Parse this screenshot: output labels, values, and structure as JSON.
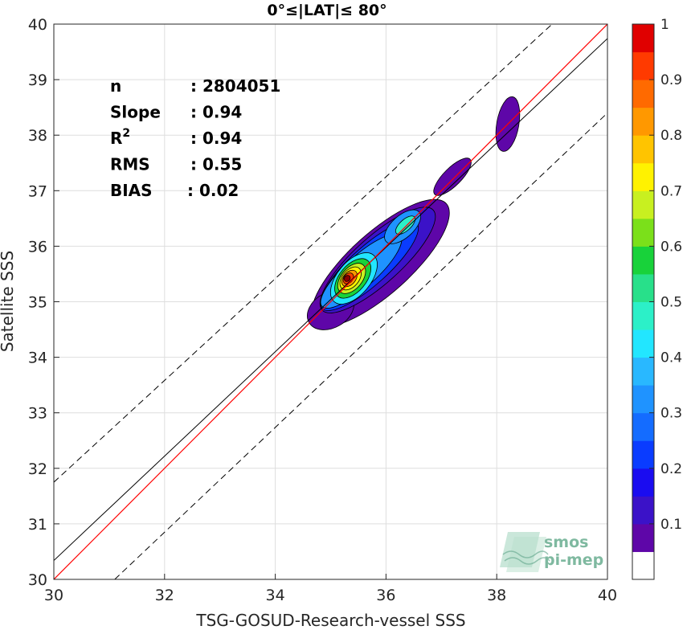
{
  "chart_data": {
    "type": "heatmap",
    "title": "0°≤|LAT|≤ 80°",
    "xlabel": "TSG-GOSUD-Research-vessel SSS",
    "ylabel": "Satellite SSS",
    "xlim": [
      30,
      40
    ],
    "ylim": [
      30,
      40
    ],
    "xticks": [
      "30",
      "32",
      "34",
      "36",
      "38",
      "40"
    ],
    "yticks": [
      "30",
      "31",
      "32",
      "33",
      "34",
      "35",
      "36",
      "37",
      "38",
      "39",
      "40"
    ],
    "grid": true,
    "stats": [
      {
        "label": "n",
        "value": ": 2804051"
      },
      {
        "label": "Slope",
        "value": ": 0.94"
      },
      {
        "label": "R",
        "sup": "2",
        "value": ": 0.94"
      },
      {
        "label": "RMS",
        "value": ": 0.55"
      },
      {
        "label": "BIAS",
        "value": ": 0.02"
      }
    ],
    "lines": {
      "one_to_one": {
        "color": "#ff0000",
        "x": [
          30,
          40
        ],
        "y": [
          30,
          40
        ]
      },
      "regression": {
        "color": "#000000",
        "x": [
          30,
          40
        ],
        "y": [
          30.34,
          39.74
        ]
      },
      "upper_bound": {
        "style": "dashed",
        "x": [
          30,
          39.0
        ],
        "y": [
          31.75,
          40
        ]
      },
      "lower_bound": {
        "style": "dashed",
        "x": [
          31.1,
          40
        ],
        "y": [
          30,
          38.4
        ]
      }
    },
    "density_peaks": [
      {
        "x": 35.25,
        "y": 35.4,
        "value": 1.0
      },
      {
        "x": 36.3,
        "y": 36.35,
        "value": 0.45
      },
      {
        "x": 38.2,
        "y": 38.2,
        "value": 0.1
      },
      {
        "x": 37.3,
        "y": 37.4,
        "value": 0.1
      }
    ],
    "colorbar": {
      "ticks": [
        "0.1",
        "0.2",
        "0.3",
        "0.4",
        "0.5",
        "0.6",
        "0.7",
        "0.8",
        "0.9",
        "1"
      ],
      "levels": [
        0,
        0.05,
        0.1,
        0.15,
        0.2,
        0.25,
        0.3,
        0.35,
        0.4,
        0.45,
        0.5,
        0.55,
        0.6,
        0.65,
        0.7,
        0.75,
        0.8,
        0.85,
        0.9,
        0.95,
        1.0
      ],
      "colors": [
        "#ffffff",
        "#5e06a8",
        "#3b12c8",
        "#1a0cf0",
        "#0a3cff",
        "#146cff",
        "#1f93ff",
        "#29b8ff",
        "#22e6ff",
        "#2cf0c8",
        "#28e08a",
        "#18d23a",
        "#7be01a",
        "#c8f020",
        "#fff200",
        "#ffc400",
        "#ff9800",
        "#ff6a00",
        "#ff3a00",
        "#e00000",
        "#8a0000"
      ]
    }
  },
  "watermark": {
    "line1": "smos",
    "line2": "pi-mep"
  }
}
